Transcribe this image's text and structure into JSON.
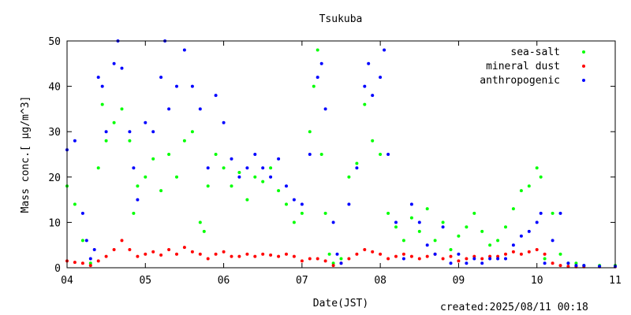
{
  "chart_data": {
    "type": "scatter",
    "title": "Tsukuba",
    "xlabel": "Date(JST)",
    "ylabel": "Mass conc.[ μg/m^3]",
    "xlim": [
      4,
      11
    ],
    "ylim": [
      0,
      50
    ],
    "x_ticks": [
      "04",
      "05",
      "06",
      "07",
      "08",
      "09",
      "10",
      "11"
    ],
    "y_ticks": [
      "0",
      "10",
      "20",
      "30",
      "40",
      "50"
    ],
    "legend_position": "top-right",
    "grid": false,
    "series": [
      {
        "name": "sea-salt",
        "color": "#00ff00",
        "x": [
          4.0,
          4.1,
          4.2,
          4.3,
          4.4,
          4.45,
          4.5,
          4.6,
          4.7,
          4.8,
          4.85,
          4.9,
          5.0,
          5.1,
          5.2,
          5.3,
          5.4,
          5.5,
          5.6,
          5.7,
          5.75,
          5.8,
          5.9,
          6.0,
          6.1,
          6.2,
          6.3,
          6.4,
          6.5,
          6.6,
          6.7,
          6.8,
          6.9,
          7.0,
          7.1,
          7.15,
          7.2,
          7.25,
          7.3,
          7.35,
          7.4,
          7.5,
          7.6,
          7.7,
          7.8,
          7.9,
          8.0,
          8.1,
          8.2,
          8.3,
          8.4,
          8.5,
          8.6,
          8.7,
          8.8,
          8.9,
          9.0,
          9.1,
          9.2,
          9.3,
          9.4,
          9.5,
          9.6,
          9.7,
          9.8,
          9.9,
          10.0,
          10.05,
          10.1,
          10.2,
          10.3,
          10.4,
          10.5,
          10.6,
          10.8,
          11.0
        ],
        "y": [
          18,
          14,
          6,
          1,
          22,
          36,
          28,
          32,
          35,
          28,
          12,
          18,
          20,
          24,
          17,
          25,
          20,
          28,
          30,
          10,
          8,
          18,
          25,
          22,
          18,
          21,
          15,
          20,
          19,
          22,
          17,
          14,
          10,
          12,
          30,
          40,
          48,
          25,
          12,
          3,
          1,
          2,
          20,
          23,
          36,
          28,
          25,
          12,
          9,
          6,
          11,
          8,
          13,
          6,
          10,
          4,
          7,
          9,
          12,
          8,
          5,
          6,
          9,
          13,
          17,
          18,
          22,
          20,
          2,
          12,
          3,
          1,
          1,
          0.5,
          0.5,
          0.5
        ]
      },
      {
        "name": "mineral dust",
        "color": "#ff0000",
        "x": [
          4.0,
          4.1,
          4.2,
          4.3,
          4.4,
          4.5,
          4.6,
          4.7,
          4.8,
          4.9,
          5.0,
          5.1,
          5.2,
          5.3,
          5.4,
          5.5,
          5.6,
          5.7,
          5.8,
          5.9,
          6.0,
          6.1,
          6.2,
          6.3,
          6.4,
          6.5,
          6.6,
          6.7,
          6.8,
          6.9,
          7.0,
          7.1,
          7.2,
          7.3,
          7.4,
          7.5,
          7.6,
          7.7,
          7.8,
          7.9,
          8.0,
          8.1,
          8.2,
          8.3,
          8.4,
          8.5,
          8.6,
          8.7,
          8.8,
          8.9,
          9.0,
          9.1,
          9.2,
          9.3,
          9.4,
          9.5,
          9.6,
          9.7,
          9.8,
          9.9,
          10.0,
          10.1,
          10.2,
          10.3,
          10.4,
          10.5,
          10.6,
          10.8,
          11.0
        ],
        "y": [
          1.5,
          1.2,
          1.0,
          0.5,
          1.5,
          2.5,
          4.0,
          6.0,
          4.0,
          2.5,
          3.0,
          3.5,
          2.8,
          4.0,
          3.0,
          4.5,
          3.5,
          3.0,
          2.0,
          3.0,
          3.5,
          2.5,
          2.5,
          3.0,
          2.5,
          3.0,
          2.8,
          2.5,
          3.0,
          2.5,
          1.5,
          2.0,
          2.0,
          1.5,
          0.5,
          1.0,
          2.0,
          3.0,
          4.0,
          3.5,
          3.0,
          2.0,
          2.5,
          3.0,
          2.5,
          2.0,
          2.5,
          3.0,
          2.0,
          2.5,
          1.5,
          2.0,
          2.5,
          2.0,
          2.5,
          2.5,
          3.0,
          3.5,
          3.0,
          3.5,
          4.0,
          3.0,
          1.0,
          0.5,
          0.3,
          0.2,
          0.2,
          0.2,
          0.2
        ]
      },
      {
        "name": "anthropogenic",
        "color": "#0000ff",
        "x": [
          4.0,
          4.1,
          4.2,
          4.25,
          4.3,
          4.35,
          4.4,
          4.45,
          4.5,
          4.6,
          4.65,
          4.7,
          4.8,
          4.85,
          4.9,
          5.0,
          5.1,
          5.2,
          5.25,
          5.3,
          5.4,
          5.5,
          5.6,
          5.7,
          5.8,
          5.9,
          6.0,
          6.1,
          6.2,
          6.3,
          6.4,
          6.5,
          6.6,
          6.7,
          6.8,
          6.9,
          7.0,
          7.1,
          7.2,
          7.25,
          7.3,
          7.4,
          7.45,
          7.5,
          7.6,
          7.7,
          7.8,
          7.85,
          7.9,
          8.0,
          8.05,
          8.1,
          8.2,
          8.3,
          8.4,
          8.5,
          8.6,
          8.7,
          8.8,
          8.9,
          9.0,
          9.1,
          9.2,
          9.3,
          9.4,
          9.5,
          9.6,
          9.7,
          9.8,
          9.9,
          10.0,
          10.05,
          10.1,
          10.2,
          10.3,
          10.4,
          10.5,
          10.6,
          10.8,
          11.0
        ],
        "y": [
          26,
          28,
          12,
          6,
          2,
          4,
          42,
          40,
          30,
          45,
          50,
          44,
          30,
          22,
          15,
          32,
          30,
          42,
          50,
          35,
          40,
          48,
          40,
          35,
          22,
          38,
          32,
          24,
          20,
          22,
          25,
          22,
          20,
          24,
          18,
          15,
          14,
          25,
          42,
          45,
          35,
          10,
          3,
          1,
          14,
          22,
          40,
          45,
          38,
          42,
          48,
          25,
          10,
          2,
          14,
          10,
          5,
          3,
          9,
          1,
          3,
          1,
          2,
          1,
          2,
          2,
          2,
          5,
          7,
          8,
          10,
          12,
          1,
          6,
          12,
          1,
          0.5,
          0.5,
          0.3,
          0.3
        ]
      }
    ]
  },
  "footer": {
    "created": "created:2025/08/11 00:18"
  }
}
